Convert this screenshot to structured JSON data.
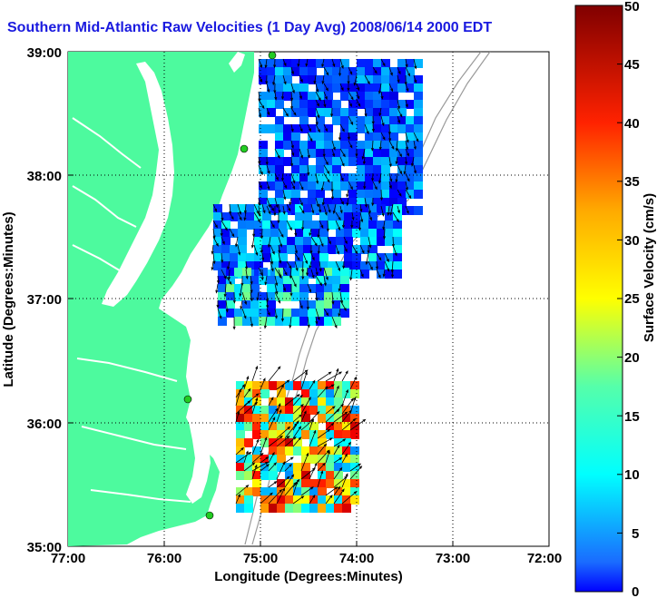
{
  "title": "Southern Mid-Atlantic Raw Velocities (1 Day Avg) 2008/06/14 2000 EDT",
  "x_axis": {
    "label": "Longitude (Degrees:Minutes)",
    "ticks": [
      "77:00",
      "76:00",
      "75:00",
      "74:00",
      "73:00",
      "72:00"
    ],
    "range": [
      -77,
      -72
    ]
  },
  "y_axis": {
    "label": "Latitude (Degrees:Minutes)",
    "ticks": [
      "39:00",
      "38:00",
      "37:00",
      "36:00",
      "35:00"
    ],
    "range": [
      35,
      39
    ]
  },
  "colorbar": {
    "label": "Surface Velocity (cm/s)",
    "ticks": [
      "50",
      "45",
      "40",
      "35",
      "30",
      "25",
      "20",
      "15",
      "10",
      "5",
      "0"
    ],
    "min": 0,
    "max": 50
  },
  "colors": {
    "land": "#4dfa9e",
    "title": "#1a1adf",
    "grid": "#000000",
    "bathymetry": "#9a9a9a",
    "site_marker": "#22cc22"
  },
  "grid": true
}
